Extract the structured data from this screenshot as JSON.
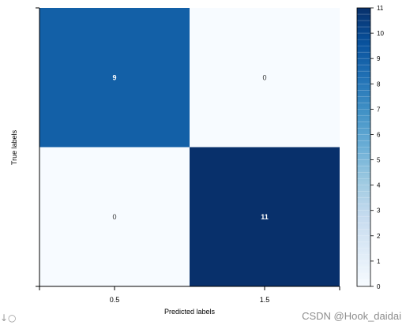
{
  "chart_data": {
    "type": "heatmap",
    "title": "",
    "xlabel": "Predicted labels",
    "ylabel": "True labels",
    "x_ticks": [
      "0.5",
      "1.5"
    ],
    "matrix": [
      [
        9,
        0
      ],
      [
        0,
        11
      ]
    ],
    "colorbar": {
      "min": 0,
      "max": 11,
      "ticks": [
        0,
        1,
        2,
        3,
        4,
        5,
        6,
        7,
        8,
        9,
        10,
        11
      ],
      "colormap": "Blues",
      "low_color": "#f7fbff",
      "high_color": "#08306b"
    }
  },
  "watermark": "CSDN @Hook_daidai",
  "corner_glyph": "↓○"
}
